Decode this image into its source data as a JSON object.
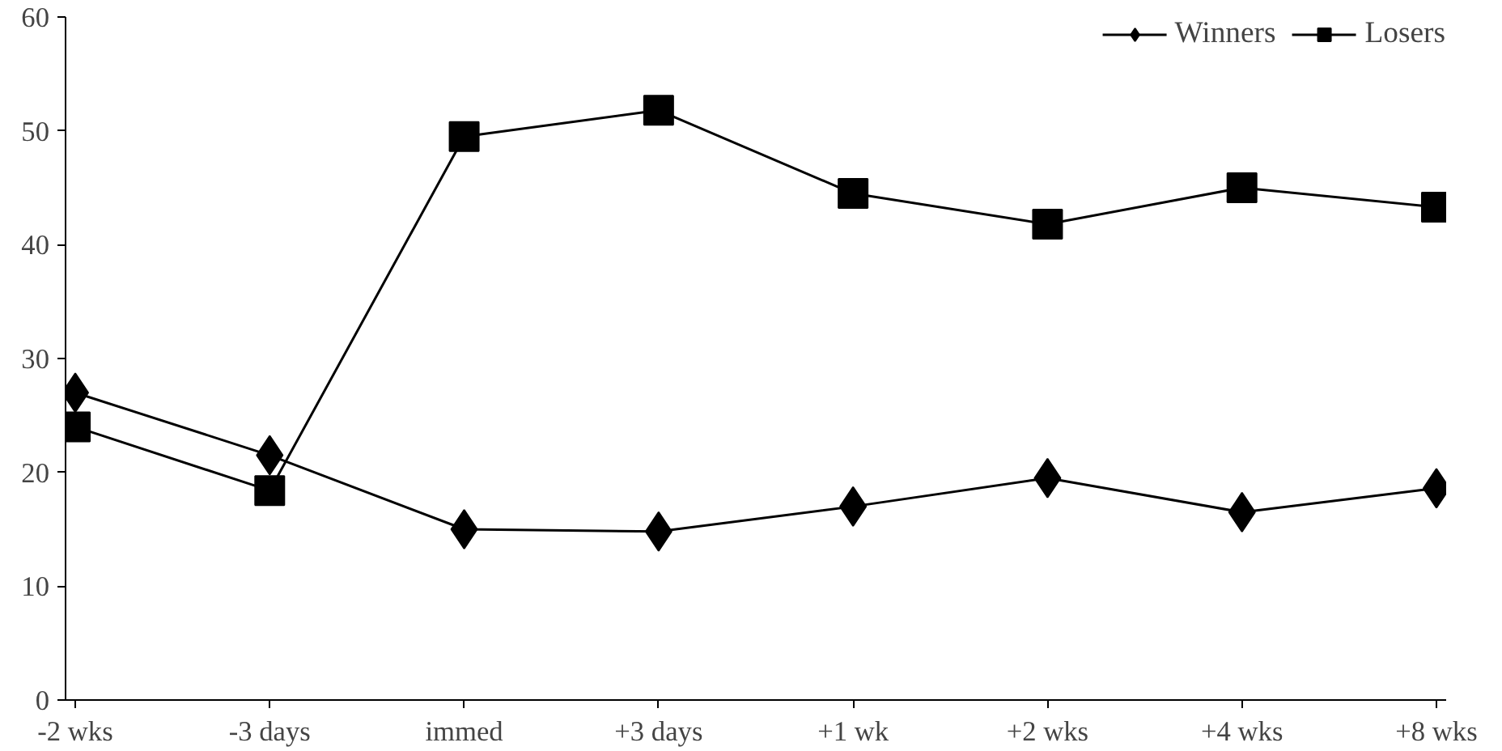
{
  "chart_data": {
    "type": "line",
    "categories": [
      "-2 wks",
      "-3 days",
      "immed",
      "+3 days",
      "+1 wk",
      "+2 wks",
      "+4 wks",
      "+8 wks"
    ],
    "series": [
      {
        "name": "Winners",
        "color": "#000000",
        "marker": "diamond",
        "values": [
          27,
          21.5,
          15,
          14.8,
          17,
          19.5,
          16.5,
          18.6
        ]
      },
      {
        "name": "Losers",
        "color": "#000000",
        "marker": "square",
        "values": [
          24,
          18.4,
          49.5,
          51.8,
          44.5,
          41.8,
          45,
          43.3
        ]
      }
    ],
    "ylim": [
      0,
      60
    ],
    "yticks": [
      0,
      10,
      20,
      30,
      40,
      50,
      60
    ],
    "grid": false,
    "legend": "top right",
    "line_style": "solid"
  }
}
